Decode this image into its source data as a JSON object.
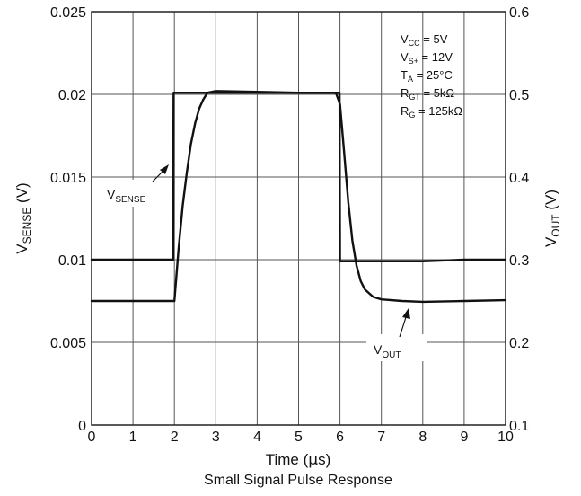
{
  "chart_data": {
    "type": "line",
    "title": "",
    "caption": "Small Signal Pulse Response",
    "xlabel": "Time (µs)",
    "xlabel_parts": {
      "prefix": "Time (",
      "symbol": "µ",
      "suffix": "s)"
    },
    "xlim": [
      0,
      10
    ],
    "x_ticks": [
      "0",
      "1",
      "2",
      "3",
      "4",
      "5",
      "6",
      "7",
      "8",
      "9",
      "10"
    ],
    "ylabel_left": {
      "main": "V",
      "sub": "SENSE",
      "unit": " (V)"
    },
    "ylim_left": [
      0,
      0.025
    ],
    "y_ticks_left": [
      "0",
      "0.005",
      "0.01",
      "0.015",
      "0.02",
      "0.025"
    ],
    "ylabel_right": {
      "main": "V",
      "sub": "OUT",
      "unit": " (V)"
    },
    "ylim_right": [
      0.1,
      0.6
    ],
    "y_ticks_right": [
      "0.1",
      "0.2",
      "0.3",
      "0.4",
      "0.5",
      "0.6"
    ],
    "grid": true,
    "conditions": [
      {
        "main": "V",
        "sub": "CC",
        "value": " = 5V"
      },
      {
        "main": "V",
        "sub": "S+",
        "value": " = 12V"
      },
      {
        "main": "T",
        "sub": "A",
        "value": " = 25°C"
      },
      {
        "main": "R",
        "sub": "GT",
        "value": " = 5kΩ"
      },
      {
        "main": "R",
        "sub": "G",
        "value": " = 125kΩ"
      }
    ],
    "series": [
      {
        "name": "VSENSE",
        "label_main": "V",
        "label_sub": "SENSE",
        "axis": "left",
        "x": [
          0,
          1.97,
          1.98,
          3.0,
          4.0,
          5.0,
          5.99,
          6.0,
          7.0,
          8.0,
          9.0,
          10.0
        ],
        "y": [
          0.01,
          0.01,
          0.0201,
          0.0201,
          0.0201,
          0.0201,
          0.0201,
          0.0099,
          0.0099,
          0.0099,
          0.01,
          0.01
        ]
      },
      {
        "name": "VOUT",
        "label_main": "V",
        "label_sub": "OUT",
        "axis": "right",
        "x": [
          0,
          1.9,
          2.0,
          2.1,
          2.2,
          2.3,
          2.4,
          2.5,
          2.6,
          2.7,
          2.8,
          3.0,
          4.0,
          5.0,
          5.9,
          6.0,
          6.1,
          6.2,
          6.3,
          6.4,
          6.5,
          6.6,
          6.8,
          7.0,
          7.5,
          8.0,
          9.0,
          10.0
        ],
        "y": [
          0.25,
          0.25,
          0.25,
          0.312,
          0.365,
          0.405,
          0.44,
          0.465,
          0.483,
          0.494,
          0.502,
          0.504,
          0.503,
          0.502,
          0.502,
          0.488,
          0.43,
          0.37,
          0.323,
          0.293,
          0.274,
          0.264,
          0.255,
          0.252,
          0.25,
          0.249,
          0.25,
          0.251
        ]
      }
    ],
    "annotations": {
      "vsense_label": {
        "main": "V",
        "sub": "SENSE"
      },
      "vout_label": {
        "main": "V",
        "sub": "OUT"
      }
    }
  }
}
